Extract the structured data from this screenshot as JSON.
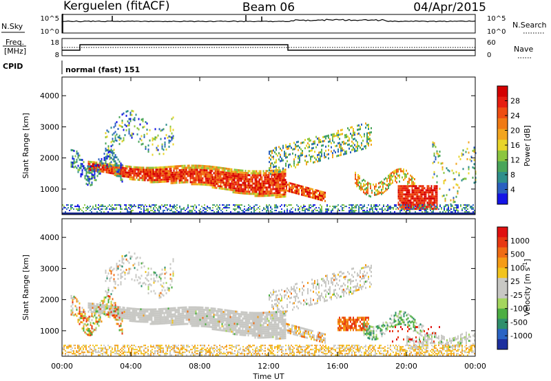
{
  "header": {
    "station": "Kerguelen (fitACF)",
    "beam": "Beam 06",
    "date": "04/Apr/2015"
  },
  "top_panels": {
    "nsky_label": "N.Sky",
    "nsearch_label": "N.Search",
    "nsky_ticks": [
      "10^5",
      "10^0"
    ],
    "nsky_right_ticks": [
      "10^5",
      "10^0"
    ],
    "freq_label_1": "Freq.",
    "freq_label_2": "[MHz]",
    "freq_ticks": [
      "18",
      "8"
    ],
    "nave_label": "Nave",
    "nave_ticks": [
      "60",
      "0"
    ],
    "cpid_label": "CPID",
    "cpid_text": "normal (fast) 151"
  },
  "colorbars": {
    "power": {
      "label": "Power [dB]",
      "ticks": [
        "28",
        "24",
        "20",
        "16",
        "12",
        "8",
        "4"
      ],
      "colors": [
        "#1414e6",
        "#2a5fc0",
        "#2f8f8c",
        "#4aa55a",
        "#8cc63f",
        "#e8d52a",
        "#f2a51f",
        "#f07a14",
        "#ee4d12",
        "#e61e10",
        "#d40000"
      ]
    },
    "velocity": {
      "label": "Velocity [m s^-1]",
      "ticks": [
        "1000",
        "500",
        "100",
        "25",
        "-25",
        "-100",
        "-500",
        "-1000"
      ],
      "colors": [
        "#1c2f9e",
        "#2a64c4",
        "#2f8f6c",
        "#4cae43",
        "#a4d65e",
        "#c8c8c4",
        "#c8c8c4",
        "#f2c41e",
        "#f59c16",
        "#ef6c14",
        "#e83812",
        "#e01010"
      ]
    }
  },
  "chart_data": [
    {
      "type": "heatmap",
      "name": "power",
      "ylabel": "Slant Range [km]",
      "xlim_hours": [
        0,
        24
      ],
      "ylim_km": [
        180,
        4600
      ],
      "y_ticks": [
        1000,
        2000,
        3000,
        4000
      ],
      "x_ticks_hours": [
        0,
        4,
        8,
        12,
        16,
        20,
        24
      ]
    },
    {
      "type": "heatmap",
      "name": "velocity",
      "ylabel": "Slant Range [km]",
      "xlabel": "Time UT",
      "xlim_hours": [
        0,
        24
      ],
      "ylim_km": [
        180,
        4600
      ],
      "y_ticks": [
        1000,
        2000,
        3000,
        4000
      ],
      "x_ticks": [
        "00:00",
        "04:00",
        "08:00",
        "12:00",
        "16:00",
        "20:00",
        "00:00"
      ]
    }
  ]
}
